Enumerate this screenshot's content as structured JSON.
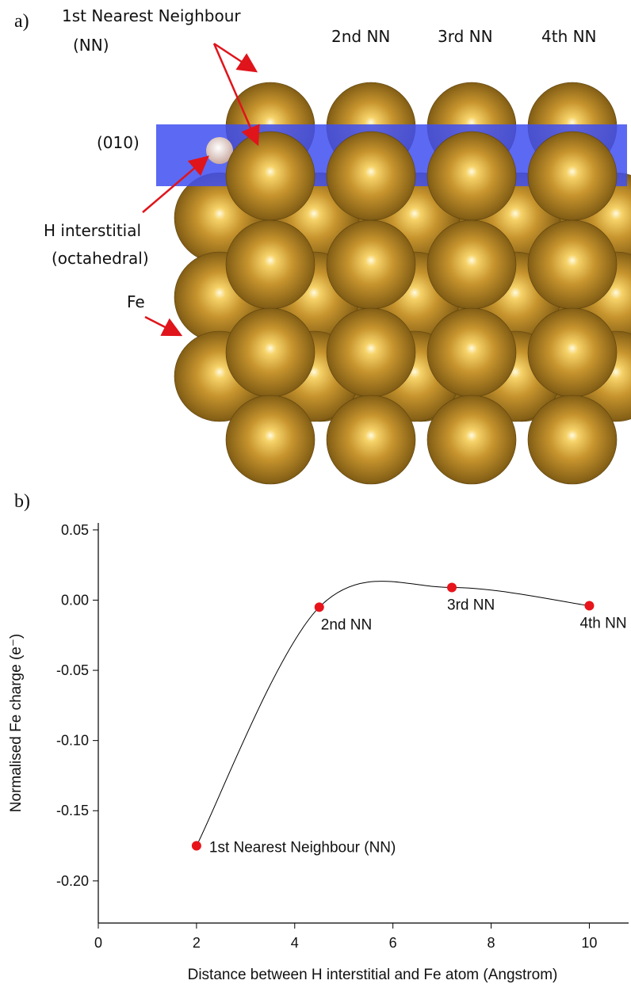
{
  "panel_a": {
    "label": "a)",
    "nn1_label": "1st Nearest Neighbour",
    "nn1_abbr": "(NN)",
    "nn2": "2nd NN",
    "nn3": "3rd NN",
    "nn4": "4th NN",
    "plane": "(010)",
    "h_label": "H interstitial",
    "h_site": "(octahedral)",
    "fe_label": "Fe"
  },
  "panel_b": {
    "label": "b)"
  },
  "chart_data": {
    "type": "line",
    "x_label": "Distance between H interstitial and Fe atom (Angstrom)",
    "y_label": "Normalised Fe charge (e⁻)",
    "x": [
      2,
      4.5,
      7.2,
      10
    ],
    "series": [
      {
        "color": "#e8141b",
        "values": [
          -0.175,
          -0.005,
          0.009,
          -0.004
        ],
        "value_labels": [
          "1st Nearest Neighbour (NN)",
          "2nd NN",
          "3rd NN",
          "4th NN"
        ]
      }
    ],
    "line_color": "#000000",
    "xlim": [
      0,
      10.8
    ],
    "xticks": [
      0,
      2,
      4,
      6,
      8,
      10
    ],
    "ylim": [
      -0.23,
      0.055
    ],
    "yticks": [
      0.05,
      {
        "value": 0,
        "label": "0.00"
      },
      -0.05,
      {
        "value": -0.1,
        "label": "-0.10"
      },
      -0.15,
      {
        "value": -0.2,
        "label": "-0.20"
      }
    ]
  }
}
